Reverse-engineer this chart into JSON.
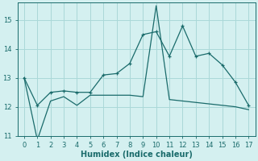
{
  "xlabel": "Humidex (Indice chaleur)",
  "background_color": "#d4f0f0",
  "grid_color": "#aad8d8",
  "line_color": "#1a6b6b",
  "x": [
    0,
    1,
    2,
    3,
    4,
    5,
    6,
    7,
    8,
    9,
    10,
    11,
    12,
    13,
    14,
    15,
    16,
    17
  ],
  "y_zigzag": [
    13.0,
    12.05,
    12.5,
    12.55,
    12.5,
    12.5,
    13.1,
    13.15,
    13.5,
    14.5,
    14.6,
    13.75,
    14.8,
    13.75,
    13.85,
    13.45,
    12.85,
    12.05
  ],
  "y_smooth": [
    13.0,
    10.85,
    12.2,
    12.35,
    12.05,
    12.4,
    12.4,
    12.4,
    12.4,
    12.35,
    15.5,
    12.25,
    12.2,
    12.15,
    12.1,
    12.05,
    12.0,
    11.9
  ],
  "ylim": [
    11,
    15.6
  ],
  "xlim": [
    -0.5,
    17.5
  ],
  "yticks": [
    11,
    12,
    13,
    14,
    15
  ],
  "xticks": [
    0,
    1,
    2,
    3,
    4,
    5,
    6,
    7,
    8,
    9,
    10,
    11,
    12,
    13,
    14,
    15,
    16,
    17
  ],
  "tick_fontsize": 6.0,
  "xlabel_fontsize": 7.0
}
